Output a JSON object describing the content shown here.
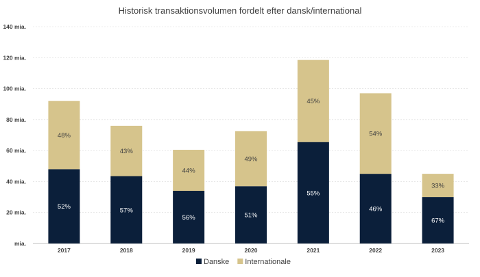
{
  "chart_data": {
    "type": "bar",
    "stacked": true,
    "title": "Historisk transaktionsvolumen fordelt efter dansk/international",
    "categories": [
      "2017",
      "2018",
      "2019",
      "2020",
      "2021",
      "2022",
      "2023"
    ],
    "y_ticks": [
      "mia.",
      "20 mia.",
      "40 mia.",
      "60 mia.",
      "80 mia.",
      "100 mia.",
      "120 mia.",
      "140 mia."
    ],
    "ylim": [
      0,
      140
    ],
    "grid": true,
    "legend_position": "bottom",
    "series": [
      {
        "name": "Danske",
        "color": "#0b1f3a",
        "label_color": "#ffffff",
        "values": [
          48,
          43.5,
          34,
          37,
          65.5,
          45,
          30
        ],
        "labels": [
          "52%",
          "57%",
          "56%",
          "51%",
          "55%",
          "46%",
          "67%"
        ]
      },
      {
        "name": "Internationale",
        "color": "#d6c48c",
        "label_color": "#404040",
        "values": [
          44,
          32.5,
          26.5,
          35.5,
          53,
          52,
          15
        ],
        "labels": [
          "48%",
          "43%",
          "44%",
          "49%",
          "45%",
          "54%",
          "33%"
        ]
      }
    ]
  }
}
